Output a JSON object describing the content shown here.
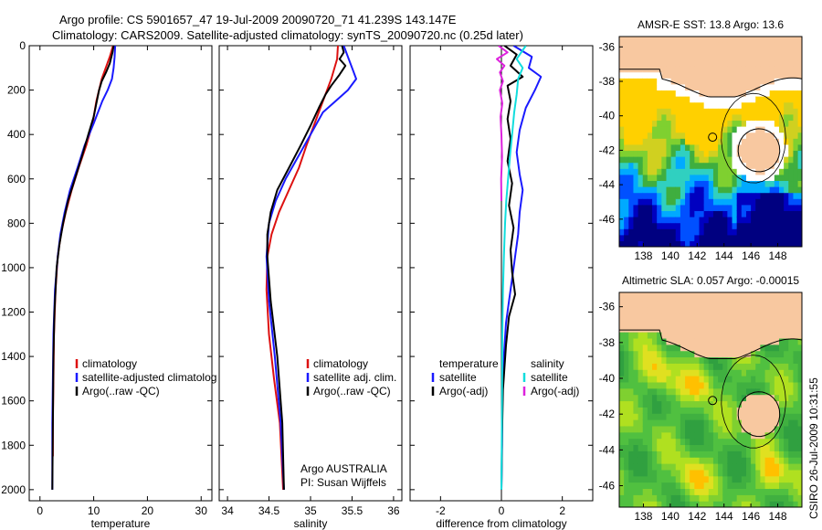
{
  "title": {
    "line1": "Argo profile: CS 5901657_47 19-Jul-2009 20090720_71 41.239S 143.147E",
    "line2": "Climatology: CARS2009. Satellite-adjusted climatology: synTS_20090720.nc (0.25d later)"
  },
  "stamp": "CSIRO 26-Jul-2009 10:31:55",
  "colors": {
    "climatology": "#dd1111",
    "satellite": "#1a1aff",
    "argo": "#000000",
    "sat_salinity": "#11dddd",
    "argo_salinity": "#dd22dd",
    "land": "#f8c8a0"
  },
  "chart_data": [
    {
      "type": "line",
      "xlabel": "temperature",
      "ylabel": "",
      "xlim": [
        -2,
        32
      ],
      "ylim": [
        2050,
        0
      ],
      "xticks": [
        0,
        10,
        20,
        30
      ],
      "yticks": [
        0,
        200,
        400,
        600,
        800,
        1000,
        1200,
        1400,
        1600,
        1800,
        2000
      ],
      "legend": [
        "climatology",
        "satellite-adjusted climatolog",
        "Argo(..raw -QC)"
      ],
      "series": [
        {
          "name": "climatology",
          "color": "#dd1111",
          "x": [
            13.6,
            13.0,
            11.5,
            10.5,
            9.8,
            8.6,
            7.2,
            5.9,
            4.8,
            3.9,
            3.3,
            2.9,
            2.6,
            2.5,
            2.4,
            2.4
          ],
          "y": [
            0,
            50,
            150,
            250,
            350,
            450,
            550,
            650,
            750,
            850,
            950,
            1100,
            1300,
            1500,
            1700,
            1850
          ]
        },
        {
          "name": "satellite-adjusted climatolog",
          "color": "#1a1aff",
          "x": [
            14.0,
            13.9,
            13.7,
            13.4,
            12.6,
            11.6,
            10.0,
            8.3,
            7.0,
            5.6,
            4.6,
            3.8,
            3.3,
            2.8,
            2.5,
            2.4,
            2.3,
            2.3
          ],
          "y": [
            0,
            50,
            100,
            150,
            200,
            250,
            350,
            450,
            550,
            650,
            750,
            850,
            950,
            1100,
            1300,
            1500,
            1700,
            2000
          ]
        },
        {
          "name": "Argo(..raw -QC)",
          "color": "#000000",
          "x": [
            13.7,
            13.5,
            13.0,
            12.3,
            11.5,
            11.0,
            10.5,
            10.0,
            9.0,
            7.8,
            6.5,
            5.2,
            4.3,
            3.6,
            3.1,
            2.7,
            2.5,
            2.4,
            2.3
          ],
          "y": [
            0,
            30,
            80,
            120,
            160,
            200,
            260,
            320,
            400,
            500,
            600,
            700,
            800,
            900,
            1000,
            1200,
            1400,
            1700,
            2000
          ]
        }
      ]
    },
    {
      "type": "line",
      "xlabel": "salinity",
      "ylabel": "",
      "xlim": [
        33.9,
        36.1
      ],
      "ylim": [
        2050,
        0
      ],
      "xticks": [
        34,
        34.5,
        35,
        35.5,
        36
      ],
      "yticks": [],
      "legend": [
        "climatology",
        "satellite adj. clim.",
        "Argo(..raw -QC)"
      ],
      "annotation": [
        "Argo AUSTRALIA",
        "PI: Susan Wijffels"
      ],
      "series": [
        {
          "name": "climatology",
          "color": "#dd1111",
          "x": [
            35.33,
            35.32,
            35.25,
            35.15,
            35.05,
            34.95,
            34.86,
            34.74,
            34.62,
            34.53,
            34.48,
            34.47,
            34.5,
            34.56,
            34.63,
            34.67
          ],
          "y": [
            0,
            60,
            150,
            250,
            350,
            450,
            550,
            650,
            750,
            850,
            950,
            1100,
            1300,
            1500,
            1700,
            2000
          ]
        },
        {
          "name": "satellite adj. clim.",
          "color": "#1a1aff",
          "x": [
            35.4,
            35.45,
            35.5,
            35.55,
            35.45,
            35.3,
            35.15,
            35.0,
            34.85,
            34.7,
            34.58,
            34.5,
            34.47,
            34.5,
            34.57,
            34.64,
            34.68
          ],
          "y": [
            0,
            50,
            100,
            150,
            200,
            250,
            300,
            400,
            500,
            600,
            700,
            800,
            950,
            1150,
            1400,
            1700,
            2000
          ]
        },
        {
          "name": "Argo(..raw -QC)",
          "color": "#000000",
          "x": [
            35.38,
            35.4,
            35.35,
            35.42,
            35.35,
            35.25,
            35.18,
            35.1,
            35.0,
            34.88,
            34.74,
            34.6,
            34.52,
            34.48,
            34.48,
            34.52,
            34.6,
            34.66,
            34.68
          ],
          "y": [
            0,
            30,
            60,
            90,
            130,
            180,
            220,
            280,
            360,
            450,
            550,
            650,
            750,
            850,
            950,
            1150,
            1400,
            1700,
            2000
          ]
        }
      ]
    },
    {
      "type": "line",
      "xlabel": "difference from climatology",
      "ylabel": "",
      "xlim": [
        -3,
        3
      ],
      "ylim": [
        2050,
        0
      ],
      "xticks": [
        -2,
        0,
        2
      ],
      "yticks": [],
      "legend_groups": [
        {
          "heading": "temperature",
          "items": [
            "satellite",
            "Argo(-adj)"
          ]
        },
        {
          "heading": "salinity",
          "items": [
            "satellite",
            "Argo(-adj)"
          ]
        }
      ],
      "series": [
        {
          "name": "satellite",
          "group": "temperature",
          "color": "#1a1aff",
          "x": [
            0.4,
            1.0,
            0.9,
            1.3,
            1.1,
            0.8,
            0.6,
            0.5,
            0.6,
            0.7,
            0.6,
            0.55,
            0.45,
            0.35,
            0.25,
            0.15,
            0.08,
            0.03,
            0.02,
            0.0
          ],
          "y": [
            0,
            50,
            100,
            140,
            200,
            280,
            380,
            480,
            580,
            650,
            750,
            850,
            950,
            1050,
            1150,
            1250,
            1400,
            1600,
            1800,
            2000
          ]
        },
        {
          "name": "Argo(-adj)",
          "group": "temperature",
          "color": "#000000",
          "x": [
            0.1,
            0.5,
            0.3,
            0.7,
            0.2,
            0.3,
            0.2,
            0.3,
            0.2,
            0.35,
            0.25,
            0.4,
            0.3,
            0.35,
            0.45,
            0.25,
            0.15,
            0.05,
            0.02,
            0.0
          ],
          "y": [
            0,
            40,
            90,
            140,
            180,
            250,
            330,
            420,
            520,
            620,
            720,
            820,
            920,
            1020,
            1120,
            1220,
            1350,
            1550,
            1750,
            2000
          ]
        },
        {
          "name": "satellite",
          "group": "salinity",
          "color": "#11dddd",
          "x": [
            0.8,
            0.5,
            0.7,
            0.55,
            0.5,
            0.42,
            0.35,
            0.28,
            0.22,
            0.16,
            0.12,
            0.08,
            0.05,
            0.03,
            0.02,
            0.0
          ],
          "y": [
            0,
            60,
            100,
            150,
            220,
            300,
            400,
            500,
            600,
            700,
            800,
            950,
            1100,
            1300,
            1600,
            2000
          ]
        },
        {
          "name": "Argo(-adj)",
          "group": "salinity",
          "color": "#dd22dd",
          "x": [
            -0.1,
            0.2,
            -0.15,
            0.1,
            -0.05,
            0.05,
            -0.05,
            0.03,
            -0.03,
            0.0,
            0.02,
            -0.01,
            0.0
          ],
          "y": [
            0,
            30,
            60,
            90,
            120,
            160,
            200,
            260,
            320,
            400,
            500,
            600,
            700
          ]
        }
      ]
    },
    {
      "type": "heatmap",
      "title": "AMSR-E SST: 13.8 Argo: 13.6",
      "xlabel": "",
      "ylabel": "",
      "xlim": [
        136.2,
        149.8
      ],
      "ylim": [
        -47.6,
        -35.4
      ],
      "xticks": [
        138,
        140,
        142,
        144,
        146,
        148
      ],
      "yticks": [
        -36,
        -38,
        -40,
        -42,
        -44,
        -46
      ],
      "colormap": [
        "#000080",
        "#0000c0",
        "#0050ff",
        "#00aaff",
        "#30d0c0",
        "#3fae3f",
        "#7fd030",
        "#d0d020",
        "#ffd000"
      ],
      "profile_marker": {
        "lon": 143.15,
        "lat": -41.24
      }
    },
    {
      "type": "heatmap",
      "title": "Altimetric SLA: 0.057 Argo: -0.00015",
      "xlabel": "",
      "ylabel": "",
      "xlim": [
        136.2,
        149.8
      ],
      "ylim": [
        -47.2,
        -35.2
      ],
      "xticks": [
        138,
        140,
        142,
        144,
        146,
        148
      ],
      "yticks": [
        -36,
        -38,
        -40,
        -42,
        -44,
        -46
      ],
      "colormap": [
        "#30a040",
        "#40b040",
        "#50c040",
        "#7fd030",
        "#b0e020",
        "#e0e020",
        "#ffc000"
      ],
      "profile_marker": {
        "lon": 143.15,
        "lat": -41.24
      }
    }
  ]
}
